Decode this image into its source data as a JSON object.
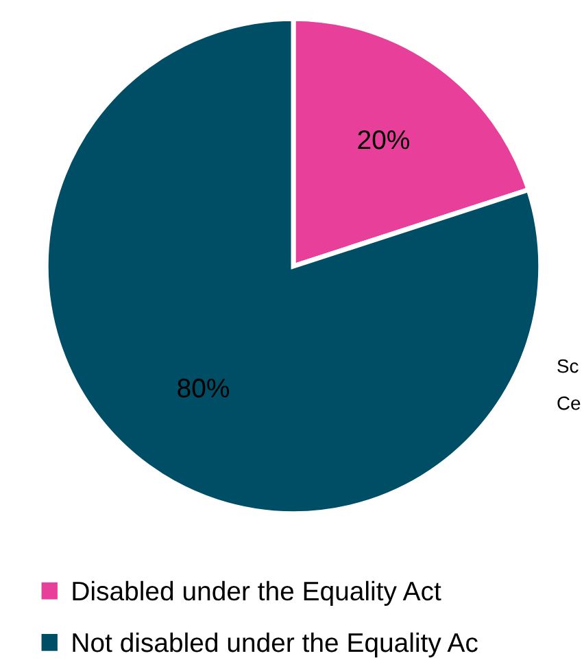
{
  "chart_data": {
    "type": "pie",
    "categories": [
      "Disabled under the Equality Act",
      "Not disabled under the Equality Ac"
    ],
    "values": [
      20,
      80
    ],
    "colors": [
      "#e8409a",
      "#004d66"
    ],
    "value_labels": [
      "20%",
      "80%"
    ],
    "annotations": [
      "Sc",
      "Ce"
    ],
    "legend": "bottom"
  }
}
